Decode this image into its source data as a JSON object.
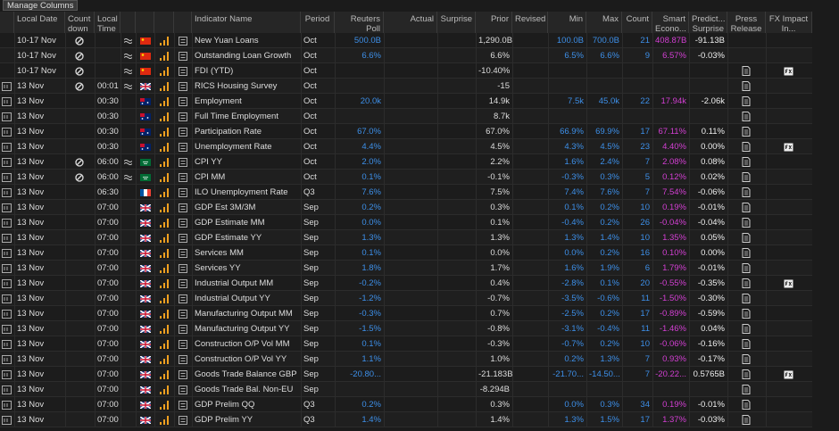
{
  "toolbar": {
    "button": "Manage Columns"
  },
  "table": {
    "columns": [
      "Local Date",
      "Count down",
      "Local Time",
      "Indicator Name",
      "Period",
      "Reuters Poll",
      "Actual",
      "Surprise",
      "Prior",
      "Revised",
      "Min",
      "Max",
      "Count",
      "Smart Econo...",
      "Predict... Surprise",
      "Press Release",
      "FX Impact In..."
    ],
    "rows": [
      {
        "date": "10-17 Nov",
        "countdown": true,
        "approx": true,
        "flag": "cn",
        "name": "New Yuan Loans",
        "period": "Oct",
        "poll": "500.0B",
        "prior": "1,290.0B",
        "min": "100.0B",
        "max": "700.0B",
        "count": "21",
        "smart": "408.87B",
        "predict": "-91.13B"
      },
      {
        "date": "10-17 Nov",
        "countdown": true,
        "approx": true,
        "flag": "cn",
        "name": "Outstanding Loan Growth",
        "period": "Oct",
        "poll": "6.6%",
        "prior": "6.6%",
        "min": "6.5%",
        "max": "6.6%",
        "count": "9",
        "smart": "6.57%",
        "predict": "-0.03%"
      },
      {
        "date": "10-17 Nov",
        "countdown": true,
        "approx": true,
        "flag": "cn",
        "name": "FDI (YTD)",
        "period": "Oct",
        "prior": "-10.40%",
        "press": true,
        "fx": true
      },
      {
        "row_icon": true,
        "date": "13 Nov",
        "countdown": true,
        "time": "00:01",
        "approx": true,
        "flag": "gb",
        "name": "RICS Housing Survey",
        "period": "Oct",
        "prior": "-15",
        "press": true
      },
      {
        "row_icon": true,
        "date": "13 Nov",
        "time": "00:30",
        "flag": "au",
        "name": "Employment",
        "period": "Oct",
        "poll": "20.0k",
        "prior": "14.9k",
        "min": "7.5k",
        "max": "45.0k",
        "count": "22",
        "smart": "17.94k",
        "predict": "-2.06k",
        "press": true
      },
      {
        "row_icon": true,
        "date": "13 Nov",
        "time": "00:30",
        "flag": "au",
        "name": "Full Time Employment",
        "period": "Oct",
        "prior": "8.7k",
        "press": true
      },
      {
        "row_icon": true,
        "date": "13 Nov",
        "time": "00:30",
        "flag": "au",
        "name": "Participation Rate",
        "period": "Oct",
        "poll": "67.0%",
        "prior": "67.0%",
        "min": "66.9%",
        "max": "69.9%",
        "count": "17",
        "smart": "67.11%",
        "predict": "0.11%",
        "press": true
      },
      {
        "row_icon": true,
        "date": "13 Nov",
        "time": "00:30",
        "flag": "au",
        "name": "Unemployment Rate",
        "period": "Oct",
        "poll": "4.4%",
        "prior": "4.5%",
        "min": "4.3%",
        "max": "4.5%",
        "count": "23",
        "smart": "4.40%",
        "predict": "0.00%",
        "press": true,
        "fx": true
      },
      {
        "row_icon": true,
        "date": "13 Nov",
        "countdown": true,
        "time": "06:00",
        "approx": true,
        "flag": "sa",
        "name": "CPI YY",
        "period": "Oct",
        "poll": "2.0%",
        "prior": "2.2%",
        "min": "1.6%",
        "max": "2.4%",
        "count": "7",
        "smart": "2.08%",
        "predict": "0.08%",
        "press": true
      },
      {
        "row_icon": true,
        "date": "13 Nov",
        "countdown": true,
        "time": "06:00",
        "approx": true,
        "flag": "sa",
        "name": "CPI MM",
        "period": "Oct",
        "poll": "0.1%",
        "prior": "-0.1%",
        "min": "-0.3%",
        "max": "0.3%",
        "count": "5",
        "smart": "0.12%",
        "predict": "0.02%",
        "press": true
      },
      {
        "row_icon": true,
        "date": "13 Nov",
        "time": "06:30",
        "flag": "fr",
        "name": "ILO Unemployment Rate",
        "period": "Q3",
        "poll": "7.6%",
        "prior": "7.5%",
        "min": "7.4%",
        "max": "7.6%",
        "count": "7",
        "smart": "7.54%",
        "predict": "-0.06%",
        "press": true
      },
      {
        "row_icon": true,
        "date": "13 Nov",
        "time": "07:00",
        "flag": "gb",
        "name": "GDP Est 3M/3M",
        "period": "Sep",
        "poll": "0.2%",
        "prior": "0.3%",
        "min": "0.1%",
        "max": "0.2%",
        "count": "10",
        "smart": "0.19%",
        "predict": "-0.01%",
        "press": true
      },
      {
        "row_icon": true,
        "date": "13 Nov",
        "time": "07:00",
        "flag": "gb",
        "name": "GDP Estimate MM",
        "period": "Sep",
        "poll": "0.0%",
        "prior": "0.1%",
        "min": "-0.4%",
        "max": "0.2%",
        "count": "26",
        "smart": "-0.04%",
        "predict": "-0.04%",
        "press": true
      },
      {
        "row_icon": true,
        "date": "13 Nov",
        "time": "07:00",
        "flag": "gb",
        "name": "GDP Estimate YY",
        "period": "Sep",
        "poll": "1.3%",
        "prior": "1.3%",
        "min": "1.3%",
        "max": "1.4%",
        "count": "10",
        "smart": "1.35%",
        "predict": "0.05%",
        "press": true
      },
      {
        "row_icon": true,
        "date": "13 Nov",
        "time": "07:00",
        "flag": "gb",
        "name": "Services MM",
        "period": "Sep",
        "poll": "0.1%",
        "prior": "0.0%",
        "min": "0.0%",
        "max": "0.2%",
        "count": "16",
        "smart": "0.10%",
        "predict": "0.00%",
        "press": true
      },
      {
        "row_icon": true,
        "date": "13 Nov",
        "time": "07:00",
        "flag": "gb",
        "name": "Services YY",
        "period": "Sep",
        "poll": "1.8%",
        "prior": "1.7%",
        "min": "1.6%",
        "max": "1.9%",
        "count": "6",
        "smart": "1.79%",
        "predict": "-0.01%",
        "press": true
      },
      {
        "row_icon": true,
        "date": "13 Nov",
        "time": "07:00",
        "flag": "gb",
        "name": "Industrial Output MM",
        "period": "Sep",
        "poll": "-0.2%",
        "prior": "0.4%",
        "min": "-2.8%",
        "max": "0.1%",
        "count": "20",
        "smart": "-0.55%",
        "predict": "-0.35%",
        "press": true,
        "fx": true
      },
      {
        "row_icon": true,
        "date": "13 Nov",
        "time": "07:00",
        "flag": "gb",
        "name": "Industrial Output YY",
        "period": "Sep",
        "poll": "-1.2%",
        "prior": "-0.7%",
        "min": "-3.5%",
        "max": "-0.6%",
        "count": "11",
        "smart": "-1.50%",
        "predict": "-0.30%",
        "press": true
      },
      {
        "row_icon": true,
        "date": "13 Nov",
        "time": "07:00",
        "flag": "gb",
        "name": "Manufacturing Output MM",
        "period": "Sep",
        "poll": "-0.3%",
        "prior": "0.7%",
        "min": "-2.5%",
        "max": "0.2%",
        "count": "17",
        "smart": "-0.89%",
        "predict": "-0.59%",
        "press": true
      },
      {
        "row_icon": true,
        "date": "13 Nov",
        "time": "07:00",
        "flag": "gb",
        "name": "Manufacturing Output YY",
        "period": "Sep",
        "poll": "-1.5%",
        "prior": "-0.8%",
        "min": "-3.1%",
        "max": "-0.4%",
        "count": "11",
        "smart": "-1.46%",
        "predict": "0.04%",
        "press": true
      },
      {
        "row_icon": true,
        "date": "13 Nov",
        "time": "07:00",
        "flag": "gb",
        "name": "Construction O/P Vol MM",
        "period": "Sep",
        "poll": "0.1%",
        "prior": "-0.3%",
        "min": "-0.7%",
        "max": "0.2%",
        "count": "10",
        "smart": "-0.06%",
        "predict": "-0.16%",
        "press": true
      },
      {
        "row_icon": true,
        "date": "13 Nov",
        "time": "07:00",
        "flag": "gb",
        "name": "Construction O/P Vol YY",
        "period": "Sep",
        "poll": "1.1%",
        "prior": "1.0%",
        "min": "0.2%",
        "max": "1.3%",
        "count": "7",
        "smart": "0.93%",
        "predict": "-0.17%",
        "press": true
      },
      {
        "row_icon": true,
        "date": "13 Nov",
        "time": "07:00",
        "flag": "gb",
        "name": "Goods Trade Balance GBP",
        "period": "Sep",
        "poll": "-20.80...",
        "prior": "-21.183B",
        "min": "-21.70...",
        "max": "-14.50...",
        "count": "7",
        "smart": "-20.22...",
        "predict": "0.5765B",
        "press": true,
        "fx": true
      },
      {
        "row_icon": true,
        "date": "13 Nov",
        "time": "07:00",
        "flag": "gb",
        "name": "Goods Trade Bal. Non-EU",
        "period": "Sep",
        "prior": "-8.294B",
        "press": true
      },
      {
        "row_icon": true,
        "date": "13 Nov",
        "time": "07:00",
        "flag": "gb",
        "name": "GDP Prelim QQ",
        "period": "Q3",
        "poll": "0.2%",
        "prior": "0.3%",
        "min": "0.0%",
        "max": "0.3%",
        "count": "34",
        "smart": "0.19%",
        "predict": "-0.01%",
        "press": true
      },
      {
        "row_icon": true,
        "date": "13 Nov",
        "time": "07:00",
        "flag": "gb",
        "name": "GDP Prelim YY",
        "period": "Q3",
        "poll": "1.4%",
        "prior": "1.4%",
        "min": "1.3%",
        "max": "1.5%",
        "count": "17",
        "smart": "1.37%",
        "predict": "-0.03%",
        "press": true
      }
    ]
  }
}
